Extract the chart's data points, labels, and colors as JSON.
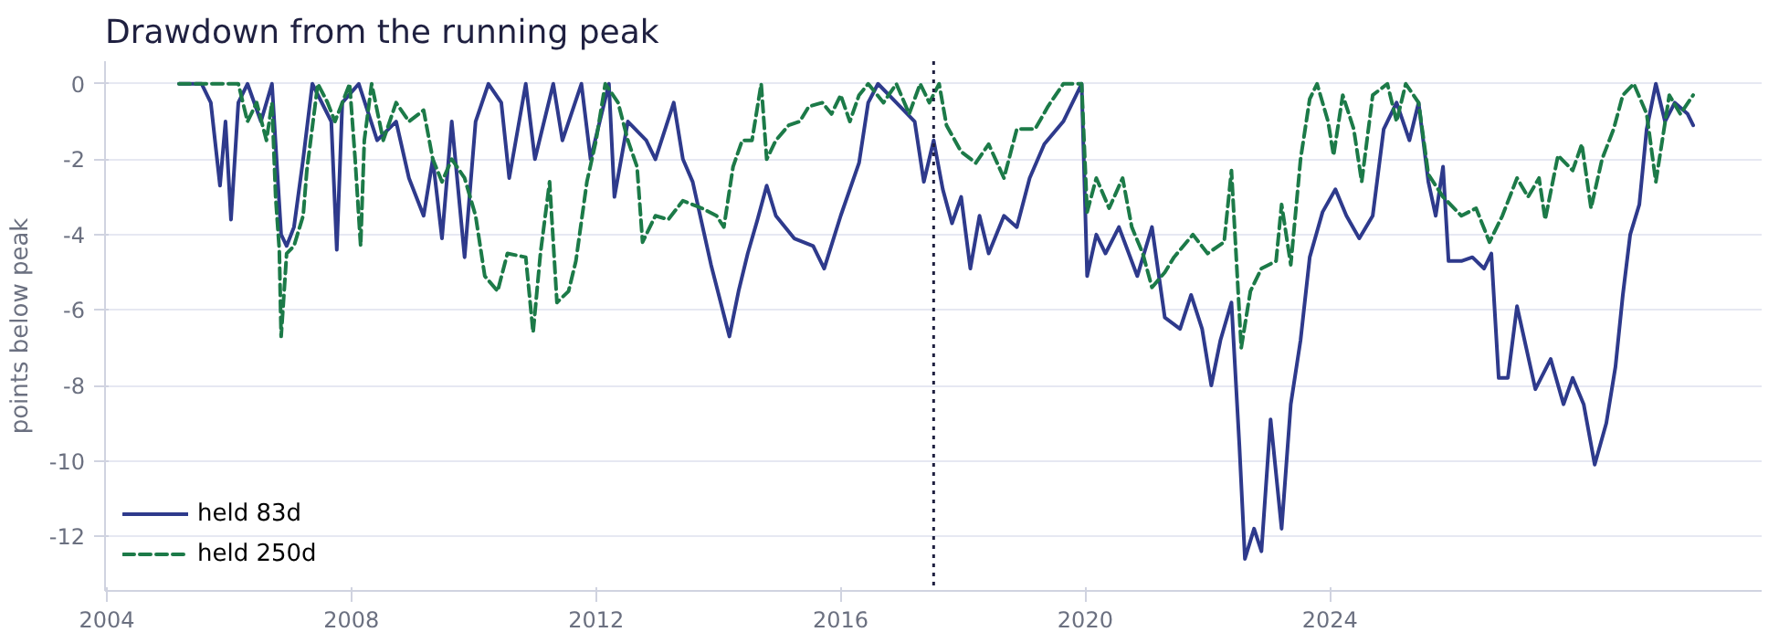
{
  "chart_data": {
    "type": "line",
    "title": "Drawdown from the running peak",
    "ylabel": "points below peak",
    "xlim": [
      2003.97,
      2031.06
    ],
    "xticks": [
      2004,
      2008,
      2012,
      2016,
      2020,
      2024
    ],
    "ylim": [
      -13.45,
      0.6
    ],
    "yticks": [
      0,
      -2,
      -4,
      -6,
      -8,
      -10,
      -12
    ],
    "grid": "y",
    "legend": "bottom left",
    "marker": "none",
    "ref_lines": [
      {
        "axis": "x",
        "value": 2017.52,
        "color": "#1f2040",
        "line_style": "dotted"
      }
    ],
    "series": [
      {
        "name": "held 83d",
        "color": "#2e3a8c",
        "line_style": "solid",
        "x": [
          2005.18,
          2005.55,
          2005.7,
          2005.85,
          2005.94,
          2006.03,
          2006.15,
          2006.3,
          2006.52,
          2006.7,
          2006.85,
          2006.94,
          2007.06,
          2007.21,
          2007.36,
          2007.67,
          2007.76,
          2007.85,
          2008.12,
          2008.42,
          2008.73,
          2008.94,
          2009.18,
          2009.33,
          2009.48,
          2009.64,
          2009.85,
          2010.03,
          2010.24,
          2010.45,
          2010.58,
          2010.85,
          2011.0,
          2011.3,
          2011.45,
          2011.76,
          2011.91,
          2012.21,
          2012.3,
          2012.52,
          2012.82,
          2012.97,
          2013.27,
          2013.42,
          2013.58,
          2013.88,
          2014.18,
          2014.33,
          2014.48,
          2014.64,
          2014.79,
          2014.94,
          2015.24,
          2015.55,
          2015.73,
          2016.0,
          2016.3,
          2016.45,
          2016.61,
          2016.91,
          2017.21,
          2017.36,
          2017.52,
          2017.67,
          2017.82,
          2017.97,
          2018.12,
          2018.27,
          2018.42,
          2018.67,
          2018.88,
          2019.09,
          2019.33,
          2019.64,
          2019.94,
          2020.03,
          2020.18,
          2020.33,
          2020.55,
          2020.85,
          2021.09,
          2021.3,
          2021.55,
          2021.73,
          2021.91,
          2022.06,
          2022.21,
          2022.39,
          2022.52,
          2022.61,
          2022.76,
          2022.88,
          2023.03,
          2023.21,
          2023.36,
          2023.52,
          2023.67,
          2023.88,
          2024.09,
          2024.27,
          2024.48,
          2024.7,
          2024.88,
          2025.09,
          2025.3,
          2025.45,
          2025.61,
          2025.73,
          2025.85,
          2025.94,
          2026.15,
          2026.33,
          2026.52,
          2026.64,
          2026.76,
          2026.91,
          2027.06,
          2027.21,
          2027.36,
          2027.61,
          2027.82,
          2027.97,
          2028.15,
          2028.33,
          2028.52,
          2028.67,
          2028.79,
          2028.91,
          2029.06,
          2029.18,
          2029.33,
          2029.48,
          2029.64,
          2029.85,
          2029.94
        ],
        "values": [
          0,
          0,
          -0.5,
          -2.7,
          -1,
          -3.6,
          -0.5,
          0,
          -1,
          0,
          -4.0,
          -4.3,
          -3.8,
          -2,
          0,
          -1,
          -4.4,
          -0.5,
          0,
          -1.5,
          -1,
          -2.5,
          -3.5,
          -2,
          -4.1,
          -1,
          -4.6,
          -1,
          0,
          -0.5,
          -2.5,
          0,
          -2,
          0,
          -1.5,
          0,
          -2,
          0,
          -3.0,
          -1,
          -1.5,
          -2,
          -0.5,
          -2,
          -2.6,
          -4.8,
          -6.7,
          -5.5,
          -4.5,
          -3.6,
          -2.7,
          -3.5,
          -4.1,
          -4.3,
          -4.9,
          -3.5,
          -2.1,
          -0.5,
          0,
          -0.5,
          -1,
          -2.6,
          -1.5,
          -2.8,
          -3.7,
          -3,
          -4.9,
          -3.5,
          -4.5,
          -3.5,
          -3.8,
          -2.5,
          -1.6,
          -1,
          0,
          -5.1,
          -4.0,
          -4.5,
          -3.8,
          -5.1,
          -3.8,
          -6.2,
          -6.5,
          -5.6,
          -6.5,
          -8.0,
          -6.8,
          -5.8,
          -9.6,
          -12.6,
          -11.8,
          -12.4,
          -8.9,
          -11.8,
          -8.5,
          -6.8,
          -4.6,
          -3.4,
          -2.8,
          -3.5,
          -4.1,
          -3.5,
          -1.2,
          -0.5,
          -1.5,
          -0.5,
          -2.6,
          -3.5,
          -2.2,
          -4.7,
          -4.7,
          -4.6,
          -4.9,
          -4.5,
          -7.8,
          -7.8,
          -5.9,
          -7,
          -8.1,
          -7.3,
          -8.5,
          -7.8,
          -8.5,
          -10.1,
          -9.0,
          -7.5,
          -5.6,
          -4,
          -3.2,
          -1.2,
          0,
          -1,
          -0.5,
          -0.8,
          -1.1
        ]
      },
      {
        "name": "held 250d",
        "color": "#1c7a48",
        "line_style": "dashed",
        "x": [
          2005.18,
          2005.55,
          2006.15,
          2006.3,
          2006.45,
          2006.61,
          2006.7,
          2006.76,
          2006.82,
          2006.85,
          2006.94,
          2007.06,
          2007.21,
          2007.27,
          2007.45,
          2007.61,
          2007.73,
          2007.85,
          2007.97,
          2008.06,
          2008.15,
          2008.21,
          2008.33,
          2008.52,
          2008.73,
          2008.94,
          2009.18,
          2009.33,
          2009.48,
          2009.64,
          2009.85,
          2010.03,
          2010.18,
          2010.39,
          2010.55,
          2010.85,
          2010.97,
          2011.09,
          2011.24,
          2011.36,
          2011.55,
          2011.67,
          2011.85,
          2012.0,
          2012.15,
          2012.36,
          2012.52,
          2012.67,
          2012.76,
          2012.97,
          2013.18,
          2013.42,
          2013.73,
          2013.97,
          2014.09,
          2014.24,
          2014.39,
          2014.55,
          2014.7,
          2014.79,
          2014.94,
          2015.15,
          2015.33,
          2015.48,
          2015.7,
          2015.85,
          2016.0,
          2016.15,
          2016.3,
          2016.45,
          2016.7,
          2016.91,
          2017.12,
          2017.3,
          2017.45,
          2017.61,
          2017.73,
          2017.97,
          2018.21,
          2018.42,
          2018.67,
          2018.88,
          2019.18,
          2019.39,
          2019.64,
          2019.94,
          2020.03,
          2020.18,
          2020.39,
          2020.61,
          2020.76,
          2020.94,
          2021.09,
          2021.3,
          2021.45,
          2021.76,
          2022.0,
          2022.27,
          2022.39,
          2022.55,
          2022.7,
          2022.88,
          2023.12,
          2023.21,
          2023.36,
          2023.52,
          2023.67,
          2023.79,
          2023.97,
          2024.06,
          2024.21,
          2024.39,
          2024.52,
          2024.7,
          2024.94,
          2025.09,
          2025.24,
          2025.45,
          2025.61,
          2025.85,
          2026.15,
          2026.39,
          2026.61,
          2026.82,
          2027.06,
          2027.24,
          2027.42,
          2027.52,
          2027.73,
          2027.97,
          2028.12,
          2028.27,
          2028.45,
          2028.64,
          2028.79,
          2028.97,
          2029.18,
          2029.33,
          2029.55,
          2029.73,
          2029.94
        ],
        "values": [
          0,
          0,
          0,
          -1,
          -0.5,
          -1.5,
          -0.5,
          -3,
          -4.4,
          -6.7,
          -4.5,
          -4.3,
          -3.5,
          -2.3,
          0,
          -0.5,
          -1,
          -0.5,
          0,
          -2,
          -4.3,
          -1.5,
          0,
          -1.5,
          -0.5,
          -1,
          -0.7,
          -2,
          -2.6,
          -2,
          -2.5,
          -3.5,
          -5.1,
          -5.5,
          -4.5,
          -4.6,
          -6.6,
          -4.5,
          -2.6,
          -5.8,
          -5.5,
          -4.7,
          -2.6,
          -1.5,
          0,
          -0.5,
          -1.5,
          -2.2,
          -4.2,
          -3.5,
          -3.6,
          -3.1,
          -3.3,
          -3.5,
          -3.8,
          -2.2,
          -1.5,
          -1.5,
          0,
          -2,
          -1.5,
          -1.1,
          -1.0,
          -0.6,
          -0.5,
          -0.8,
          -0.3,
          -1,
          -0.3,
          0,
          -0.5,
          0,
          -0.8,
          0,
          -0.5,
          0,
          -1.1,
          -1.8,
          -2.1,
          -1.6,
          -2.5,
          -1.2,
          -1.2,
          -0.6,
          0,
          0,
          -3.4,
          -2.5,
          -3.3,
          -2.5,
          -3.8,
          -4.5,
          -5.4,
          -5.0,
          -4.6,
          -4.0,
          -4.5,
          -4.2,
          -2.3,
          -7.0,
          -5.5,
          -4.9,
          -4.7,
          -3.2,
          -4.8,
          -2.0,
          -0.4,
          0,
          -1,
          -1.9,
          -0.3,
          -1.2,
          -2.6,
          -0.3,
          0,
          -1,
          0,
          -0.5,
          -2.4,
          -3.0,
          -3.5,
          -3.3,
          -4.2,
          -3.5,
          -2.5,
          -3,
          -2.5,
          -3.6,
          -1.9,
          -2.3,
          -1.6,
          -3.3,
          -2,
          -1.2,
          -0.3,
          0,
          -0.8,
          -2.6,
          -0.3,
          -0.8,
          -0.3
        ]
      }
    ]
  }
}
